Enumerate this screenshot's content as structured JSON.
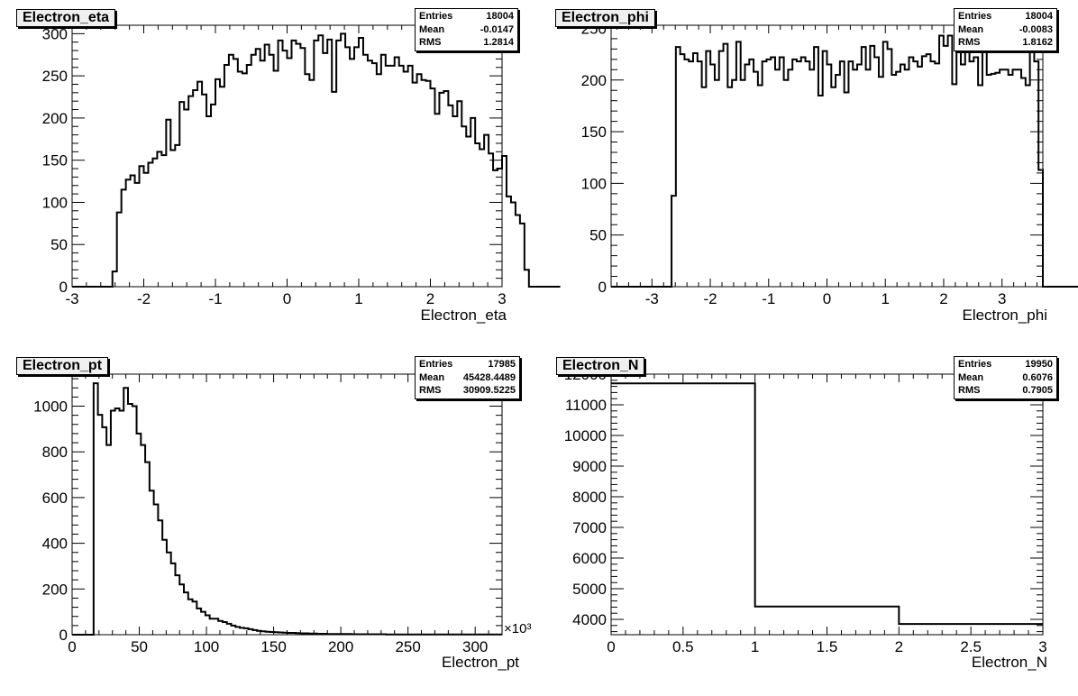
{
  "chart_data": [
    {
      "type": "histogram",
      "title": "Electron_eta",
      "xlabel": "Electron_eta",
      "ylabel": "",
      "xlim": [
        -3,
        3
      ],
      "ylim": [
        0,
        310
      ],
      "xticks": [
        -3,
        -2,
        -1,
        0,
        1,
        2,
        3
      ],
      "xtick_labels": [
        "-3",
        "-2",
        "-1",
        "0",
        "1",
        "2",
        "3"
      ],
      "yticks": [
        0,
        50,
        100,
        150,
        200,
        250,
        300
      ],
      "ytick_labels": [
        "0",
        "50",
        "100",
        "150",
        "200",
        "250",
        "300"
      ],
      "x_multiplier": "",
      "bin_low": -3,
      "bin_width": 0.0625,
      "values": [
        0,
        0,
        0,
        0,
        0,
        0,
        0,
        0,
        0,
        18,
        88,
        115,
        127,
        132,
        123,
        143,
        135,
        147,
        152,
        160,
        156,
        198,
        162,
        168,
        219,
        210,
        226,
        233,
        243,
        228,
        202,
        216,
        246,
        237,
        263,
        275,
        270,
        255,
        253,
        263,
        275,
        282,
        268,
        287,
        275,
        256,
        292,
        280,
        271,
        292,
        288,
        283,
        252,
        245,
        292,
        298,
        277,
        293,
        231,
        292,
        300,
        284,
        270,
        284,
        295,
        275,
        268,
        265,
        252,
        275,
        262,
        262,
        272,
        262,
        255,
        262,
        242,
        252,
        245,
        244,
        235,
        205,
        230,
        232,
        215,
        202,
        220,
        190,
        178,
        200,
        170,
        163,
        180,
        158,
        138,
        140,
        155,
        107,
        100,
        85,
        75,
        20,
        0,
        0,
        0,
        0,
        0,
        0,
        0
      ]
    },
    {
      "type": "histogram",
      "title": "Electron_phi",
      "xlabel": "Electron_phi",
      "ylabel": "",
      "xlim": [
        -3.7,
        3.7
      ],
      "ylim": [
        0,
        253
      ],
      "xticks": [
        -3,
        -2,
        -1,
        0,
        1,
        2,
        3
      ],
      "xtick_labels": [
        "-3",
        "-2",
        "-1",
        "0",
        "1",
        "2",
        "3"
      ],
      "yticks": [
        0,
        50,
        100,
        150,
        200,
        250
      ],
      "ytick_labels": [
        "0",
        "50",
        "100",
        "150",
        "200",
        "250"
      ],
      "x_multiplier": "",
      "bin_low": -3.7,
      "bin_width": 0.074,
      "values": [
        0,
        0,
        0,
        0,
        0,
        0,
        0,
        0,
        0,
        0,
        0,
        0,
        0,
        0,
        88,
        232,
        225,
        220,
        218,
        226,
        218,
        193,
        228,
        215,
        200,
        228,
        235,
        193,
        200,
        237,
        200,
        215,
        220,
        208,
        195,
        218,
        220,
        222,
        210,
        222,
        200,
        210,
        220,
        218,
        222,
        218,
        210,
        232,
        185,
        228,
        215,
        193,
        205,
        218,
        188,
        218,
        210,
        215,
        232,
        210,
        233,
        222,
        203,
        237,
        230,
        205,
        208,
        215,
        210,
        222,
        218,
        213,
        223,
        225,
        218,
        216,
        243,
        233,
        243,
        196,
        243,
        215,
        227,
        218,
        222,
        195,
        228,
        205,
        206,
        207,
        210,
        210,
        205,
        210,
        210,
        202,
        195,
        228,
        218,
        113,
        0,
        0,
        0,
        0,
        0,
        0,
        0,
        0,
        0,
        0,
        0,
        0
      ]
    },
    {
      "type": "histogram",
      "title": "Electron_pt",
      "xlabel": "Electron_pt",
      "ylabel": "",
      "xlim": [
        0,
        320
      ],
      "ylim": [
        0,
        1140
      ],
      "xticks": [
        0,
        50,
        100,
        150,
        200,
        250,
        300
      ],
      "xtick_labels": [
        "0",
        "50",
        "100",
        "150",
        "200",
        "250",
        "300"
      ],
      "yticks": [
        0,
        200,
        400,
        600,
        800,
        1000
      ],
      "ytick_labels": [
        "0",
        "200",
        "400",
        "600",
        "800",
        "1000"
      ],
      "x_multiplier": "×10³",
      "bin_low": 0,
      "bin_width": 3.2,
      "values": [
        0,
        0,
        0,
        0,
        0,
        1100,
        962,
        908,
        830,
        980,
        990,
        980,
        1080,
        1010,
        1000,
        880,
        830,
        755,
        630,
        570,
        500,
        415,
        360,
        312,
        260,
        220,
        185,
        155,
        145,
        115,
        100,
        85,
        70,
        70,
        60,
        55,
        48,
        40,
        34,
        30,
        28,
        24,
        20,
        17,
        15,
        13,
        12,
        11,
        10,
        9,
        8,
        8,
        7,
        6,
        6,
        5,
        5,
        4,
        4,
        3,
        3,
        3,
        3,
        3,
        3,
        2,
        2,
        2,
        2,
        2,
        2,
        2,
        2,
        1,
        1,
        1,
        1,
        1,
        1,
        1,
        1,
        1,
        1,
        1,
        1,
        1,
        1,
        1,
        1,
        1,
        1,
        1,
        1,
        1,
        1,
        1,
        1,
        1,
        1,
        1
      ]
    },
    {
      "type": "histogram",
      "title": "Electron_N",
      "xlabel": "Electron_N",
      "ylabel": "",
      "xlim": [
        0,
        3
      ],
      "ylim": [
        3500,
        12000
      ],
      "xticks": [
        0,
        0.5,
        1,
        1.5,
        2,
        2.5,
        3
      ],
      "xtick_labels": [
        "0",
        "0.5",
        "1",
        "1.5",
        "2",
        "2.5",
        "3"
      ],
      "yticks": [
        4000,
        5000,
        6000,
        7000,
        8000,
        9000,
        10000,
        11000,
        12000
      ],
      "ytick_labels": [
        "4000",
        "5000",
        "6000",
        "7000",
        "8000",
        "9000",
        "10000",
        "11000",
        "12000"
      ],
      "x_multiplier": "",
      "bin_low": 0,
      "bin_width": 1,
      "values": [
        11700,
        4420,
        3850
      ]
    }
  ],
  "stats": [
    {
      "rows": [
        [
          "Entries",
          "18004"
        ],
        [
          "Mean",
          "-0.0147"
        ],
        [
          "RMS",
          "1.2814"
        ]
      ]
    },
    {
      "rows": [
        [
          "Entries",
          "18004"
        ],
        [
          "Mean",
          "-0.0083"
        ],
        [
          "RMS",
          "1.8162"
        ]
      ]
    },
    {
      "rows": [
        [
          "Entries",
          "17985"
        ],
        [
          "Mean",
          "45428.4489"
        ],
        [
          "RMS",
          "30909.5225"
        ]
      ]
    },
    {
      "rows": [
        [
          "Entries",
          "19950"
        ],
        [
          "Mean",
          "0.6076"
        ],
        [
          "RMS",
          "0.7905"
        ]
      ]
    }
  ]
}
